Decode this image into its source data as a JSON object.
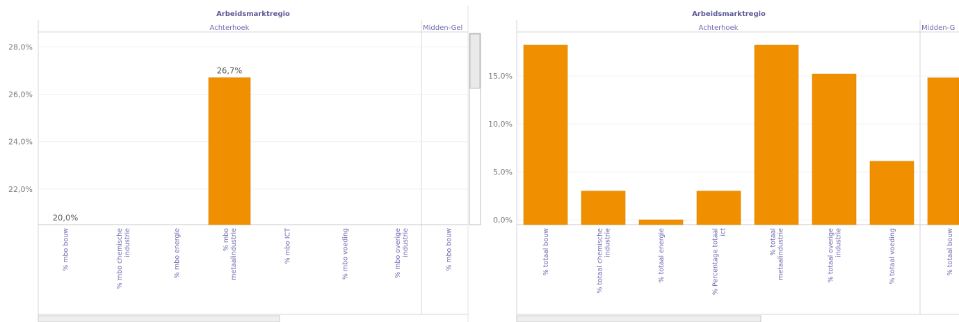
{
  "chart_data": [
    {
      "type": "bar",
      "column_header": "Arbeidsmarktregio",
      "groups": [
        "Achterhoek",
        "Midden-Gel"
      ],
      "categories": [
        "% mbo bouw",
        "% mbo chemische industrie",
        "% mbo energie",
        "% mbo metaalindustrie",
        "% mbo ICT",
        "% mbo voeding",
        "% mbo overige industrie",
        "% mbo bouw"
      ],
      "values": [
        20.0,
        null,
        null,
        26.7,
        null,
        null,
        null,
        null
      ],
      "data_labels": [
        "20,0%",
        "",
        "",
        "26,7%",
        "",
        "",
        "",
        ""
      ],
      "yticks": [
        "22,0%",
        "24,0%",
        "26,0%",
        "28,0%"
      ],
      "ylim": [
        20.5,
        28.6
      ],
      "bar_color": "#f09000"
    },
    {
      "type": "bar",
      "column_header": "Arbeidsmarktregio",
      "groups": [
        "Achterhoek",
        "Midden-G"
      ],
      "categories": [
        "% totaal bouw",
        "% totaal chemische industrie",
        "% totaal energie",
        "% Percentage totaal ict",
        "% totaal metaalindustrie",
        "% totaal overige industrie",
        "% totaal voeding",
        "% totaal bouw"
      ],
      "values": [
        18.2,
        3.0,
        0.0,
        3.0,
        18.2,
        15.2,
        6.1,
        14.8
      ],
      "yticks": [
        "0,0%",
        "5,0%",
        "10,0%",
        "15,0%"
      ],
      "ylim": [
        -0.5,
        19.5
      ],
      "bar_color": "#f09000"
    }
  ]
}
